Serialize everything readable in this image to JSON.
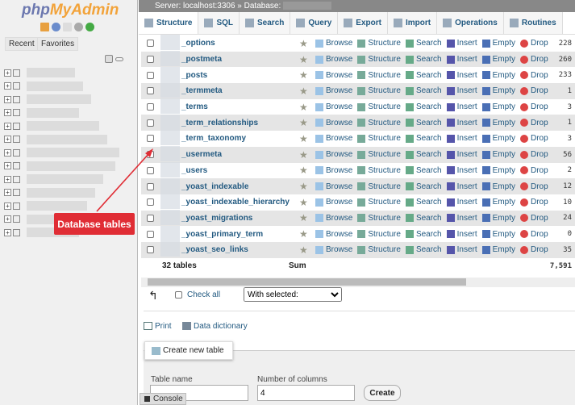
{
  "sidebar": {
    "logo_a": "php",
    "logo_b": "MyAdmin",
    "recent": "Recent",
    "favorites": "Favorites",
    "tree_count": 13
  },
  "breadcrumb": {
    "server": "Server: localhost:3306",
    "sep": "»",
    "database": "Database:"
  },
  "tabs": [
    "Structure",
    "SQL",
    "Search",
    "Query",
    "Export",
    "Import",
    "Operations",
    "Routines"
  ],
  "actions": [
    "Browse",
    "Structure",
    "Search",
    "Insert",
    "Empty",
    "Drop"
  ],
  "tables": [
    {
      "name": "_options",
      "rows": "228"
    },
    {
      "name": "_postmeta",
      "rows": "260"
    },
    {
      "name": "_posts",
      "rows": "233"
    },
    {
      "name": "_termmeta",
      "rows": "1"
    },
    {
      "name": "_terms",
      "rows": "3"
    },
    {
      "name": "_term_relationships",
      "rows": "1"
    },
    {
      "name": "_term_taxonomy",
      "rows": "3"
    },
    {
      "name": "_usermeta",
      "rows": "56"
    },
    {
      "name": "_users",
      "rows": "2"
    },
    {
      "name": "_yoast_indexable",
      "rows": "12"
    },
    {
      "name": "_yoast_indexable_hierarchy",
      "rows": "10"
    },
    {
      "name": "_yoast_migrations",
      "rows": "24"
    },
    {
      "name": "_yoast_primary_term",
      "rows": "0"
    },
    {
      "name": "_yoast_seo_links",
      "rows": "35"
    }
  ],
  "summary": {
    "tables": "32 tables",
    "sum": "Sum",
    "total": "7,591"
  },
  "bulk": {
    "check_all": "Check all",
    "with_selected": "With selected:"
  },
  "links": {
    "print": "Print",
    "data_dictionary": "Data dictionary"
  },
  "create": {
    "title": "Create new table",
    "table_name_label": "Table name",
    "columns_label": "Number of columns",
    "columns_value": "4",
    "create_button": "Create"
  },
  "console": "Console",
  "annotation": {
    "label": "Database tables",
    "color": "#e02d35"
  }
}
